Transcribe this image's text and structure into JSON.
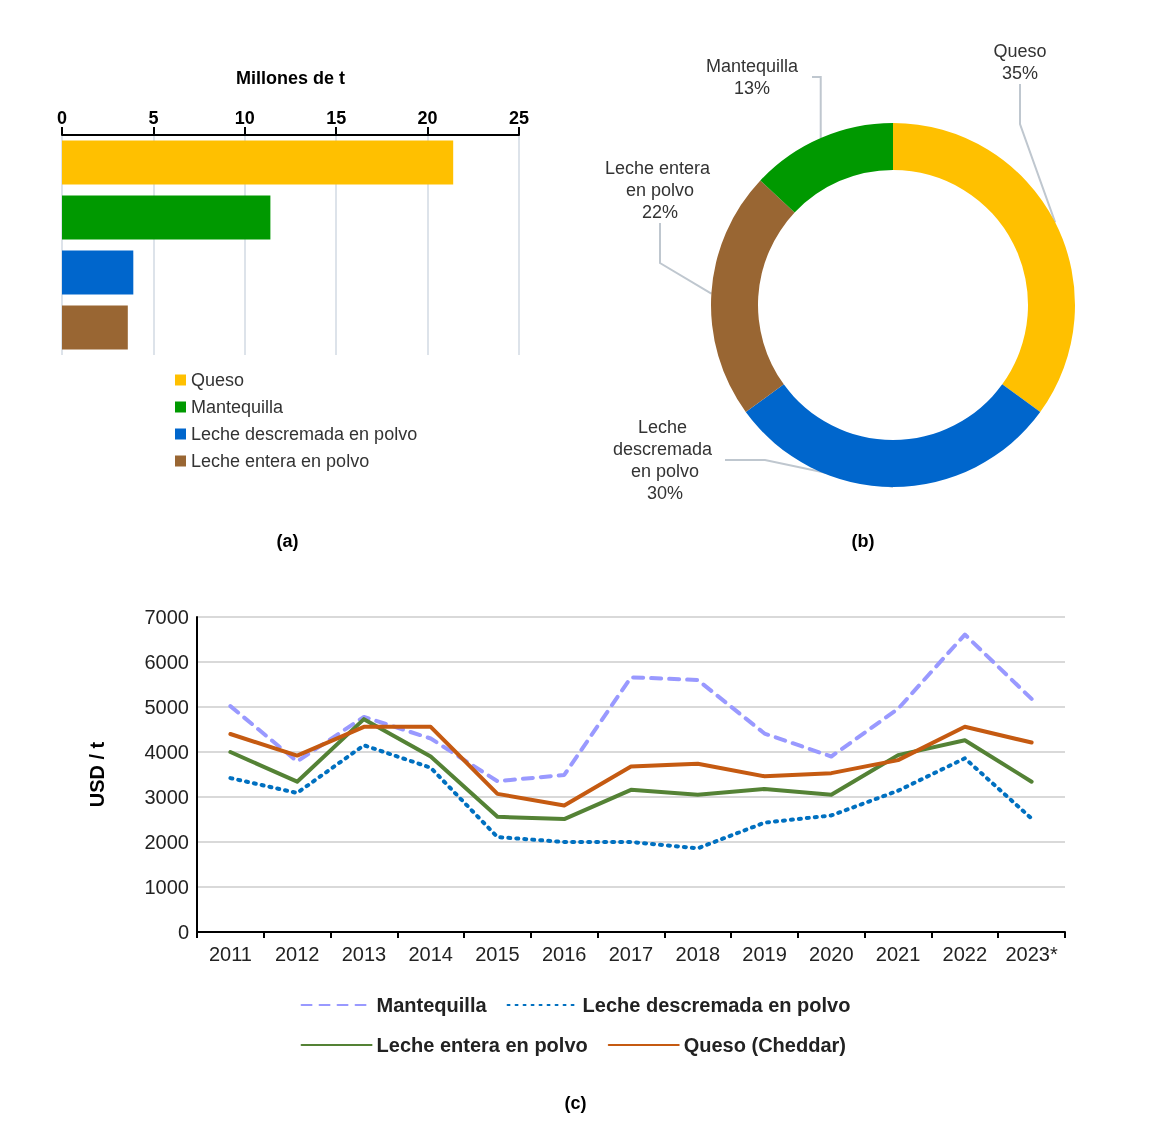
{
  "chart_data": [
    {
      "type": "bar",
      "orientation": "horizontal",
      "stacked": true,
      "xlabel": "Millones de t",
      "categories": [
        null,
        null,
        null,
        null
      ],
      "series": [
        {
          "name": "Queso",
          "color": "#ffc000",
          "values": [
            21.4,
            null,
            null,
            null
          ]
        },
        {
          "name": "Mantequilla",
          "color": "#009900",
          "values": [
            null,
            11.4,
            null,
            null
          ]
        },
        {
          "name": "Leche descremada en polvo",
          "color": "#0066cc",
          "values": [
            null,
            null,
            3.9,
            null
          ]
        },
        {
          "name": "Leche entera en polvo",
          "color": "#996633",
          "values": [
            null,
            null,
            null,
            3.6
          ]
        }
      ],
      "xlim": [
        0,
        25
      ],
      "xticks": [
        0,
        5,
        10,
        15,
        20,
        25
      ],
      "grid": "x",
      "legend": "bottom left",
      "annotations": [
        "(a)"
      ]
    },
    {
      "type": "donut",
      "categories": [
        "Queso",
        "Leche descremada en polvo",
        "Leche entera en polvo",
        "Mantequilla"
      ],
      "values": [
        35,
        30,
        22,
        13
      ],
      "colors": [
        "#ffc000",
        "#0066cc",
        "#996633",
        "#009900"
      ],
      "value_labels": [
        "35%",
        "30%",
        "22%",
        "13%"
      ],
      "annotations": [
        "(b)"
      ]
    },
    {
      "type": "line",
      "ylabel": "USD / t",
      "categories": [
        "2011",
        "2012",
        "2013",
        "2014",
        "2015",
        "2016",
        "2017",
        "2018",
        "2019",
        "2020",
        "2021",
        "2022",
        "2023*"
      ],
      "series": [
        {
          "name": "Mantequilla",
          "color": "#9999ff",
          "line_style": "dashed",
          "values": [
            5020,
            3790,
            4780,
            4300,
            3350,
            3490,
            5660,
            5600,
            4410,
            3900,
            4960,
            6610,
            5180
          ]
        },
        {
          "name": "Leche descremada en polvo",
          "color": "#0070c0",
          "line_style": "dotted",
          "values": [
            3420,
            3090,
            4150,
            3650,
            2110,
            2000,
            2000,
            1860,
            2430,
            2590,
            3140,
            3860,
            2520
          ]
        },
        {
          "name": "Leche entera en polvo",
          "color": "#548235",
          "line_style": "solid",
          "values": [
            4000,
            3340,
            4730,
            3900,
            2560,
            2510,
            3160,
            3050,
            3180,
            3050,
            3930,
            4260,
            3340
          ]
        },
        {
          "name": "Queso (Cheddar)",
          "color": "#c55a11",
          "line_style": "solid",
          "values": [
            4400,
            3920,
            4560,
            4560,
            3070,
            2810,
            3680,
            3740,
            3460,
            3530,
            3820,
            4560,
            4210
          ]
        }
      ],
      "ylim": [
        0,
        7000
      ],
      "yticks": [
        0,
        1000,
        2000,
        3000,
        4000,
        5000,
        6000,
        7000
      ],
      "grid": "y",
      "legend": "bottom",
      "marker": "none",
      "annotations": [
        "(c)"
      ]
    }
  ]
}
